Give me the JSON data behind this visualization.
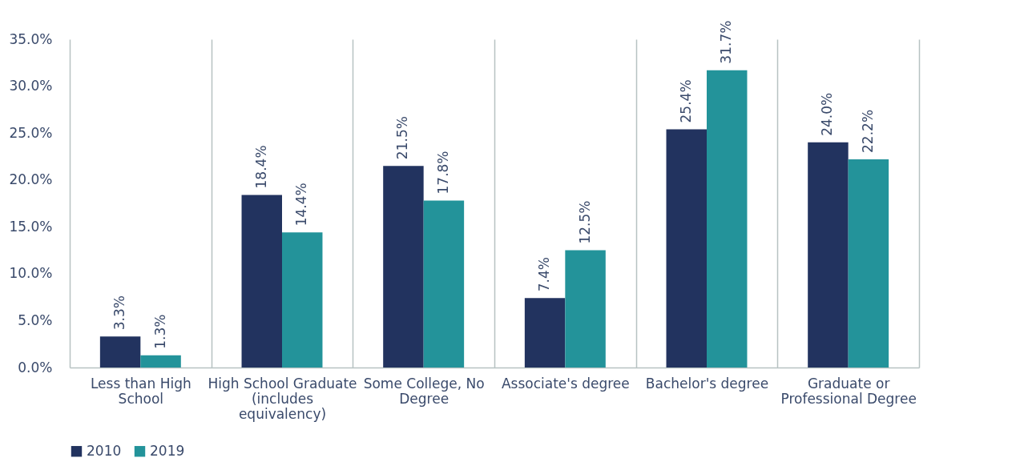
{
  "chart_data": {
    "type": "bar",
    "categories": [
      "Less than High School",
      "High School Graduate (includes equivalency)",
      "Some College, No Degree",
      "Associate's degree",
      "Bachelor's degree",
      "Graduate or Professional Degree"
    ],
    "series": [
      {
        "name": "2010",
        "color": "#22335f",
        "values": [
          3.3,
          18.4,
          21.5,
          7.4,
          25.4,
          24.0
        ],
        "value_labels": [
          "3.3%",
          "18.4%",
          "21.5%",
          "7.4%",
          "25.4%",
          "24.0%"
        ]
      },
      {
        "name": "2019",
        "color": "#23939a",
        "values": [
          1.3,
          14.4,
          17.8,
          12.5,
          31.7,
          22.2
        ],
        "value_labels": [
          "1.3%",
          "14.4%",
          "17.8%",
          "12.5%",
          "31.7%",
          "22.2%"
        ]
      }
    ],
    "ylim": [
      0,
      35
    ],
    "yticks": [
      {
        "value": 0,
        "label": "0.0%"
      },
      {
        "value": 5,
        "label": "5.0%"
      },
      {
        "value": 10,
        "label": "10.0%"
      },
      {
        "value": 15,
        "label": "15.0%"
      },
      {
        "value": 20,
        "label": "20.0%"
      },
      {
        "value": 25,
        "label": "25.0%"
      },
      {
        "value": 30,
        "label": "30.0%"
      },
      {
        "value": 35,
        "label": "35.0%"
      }
    ],
    "grid": "x",
    "legend": "bottom"
  }
}
